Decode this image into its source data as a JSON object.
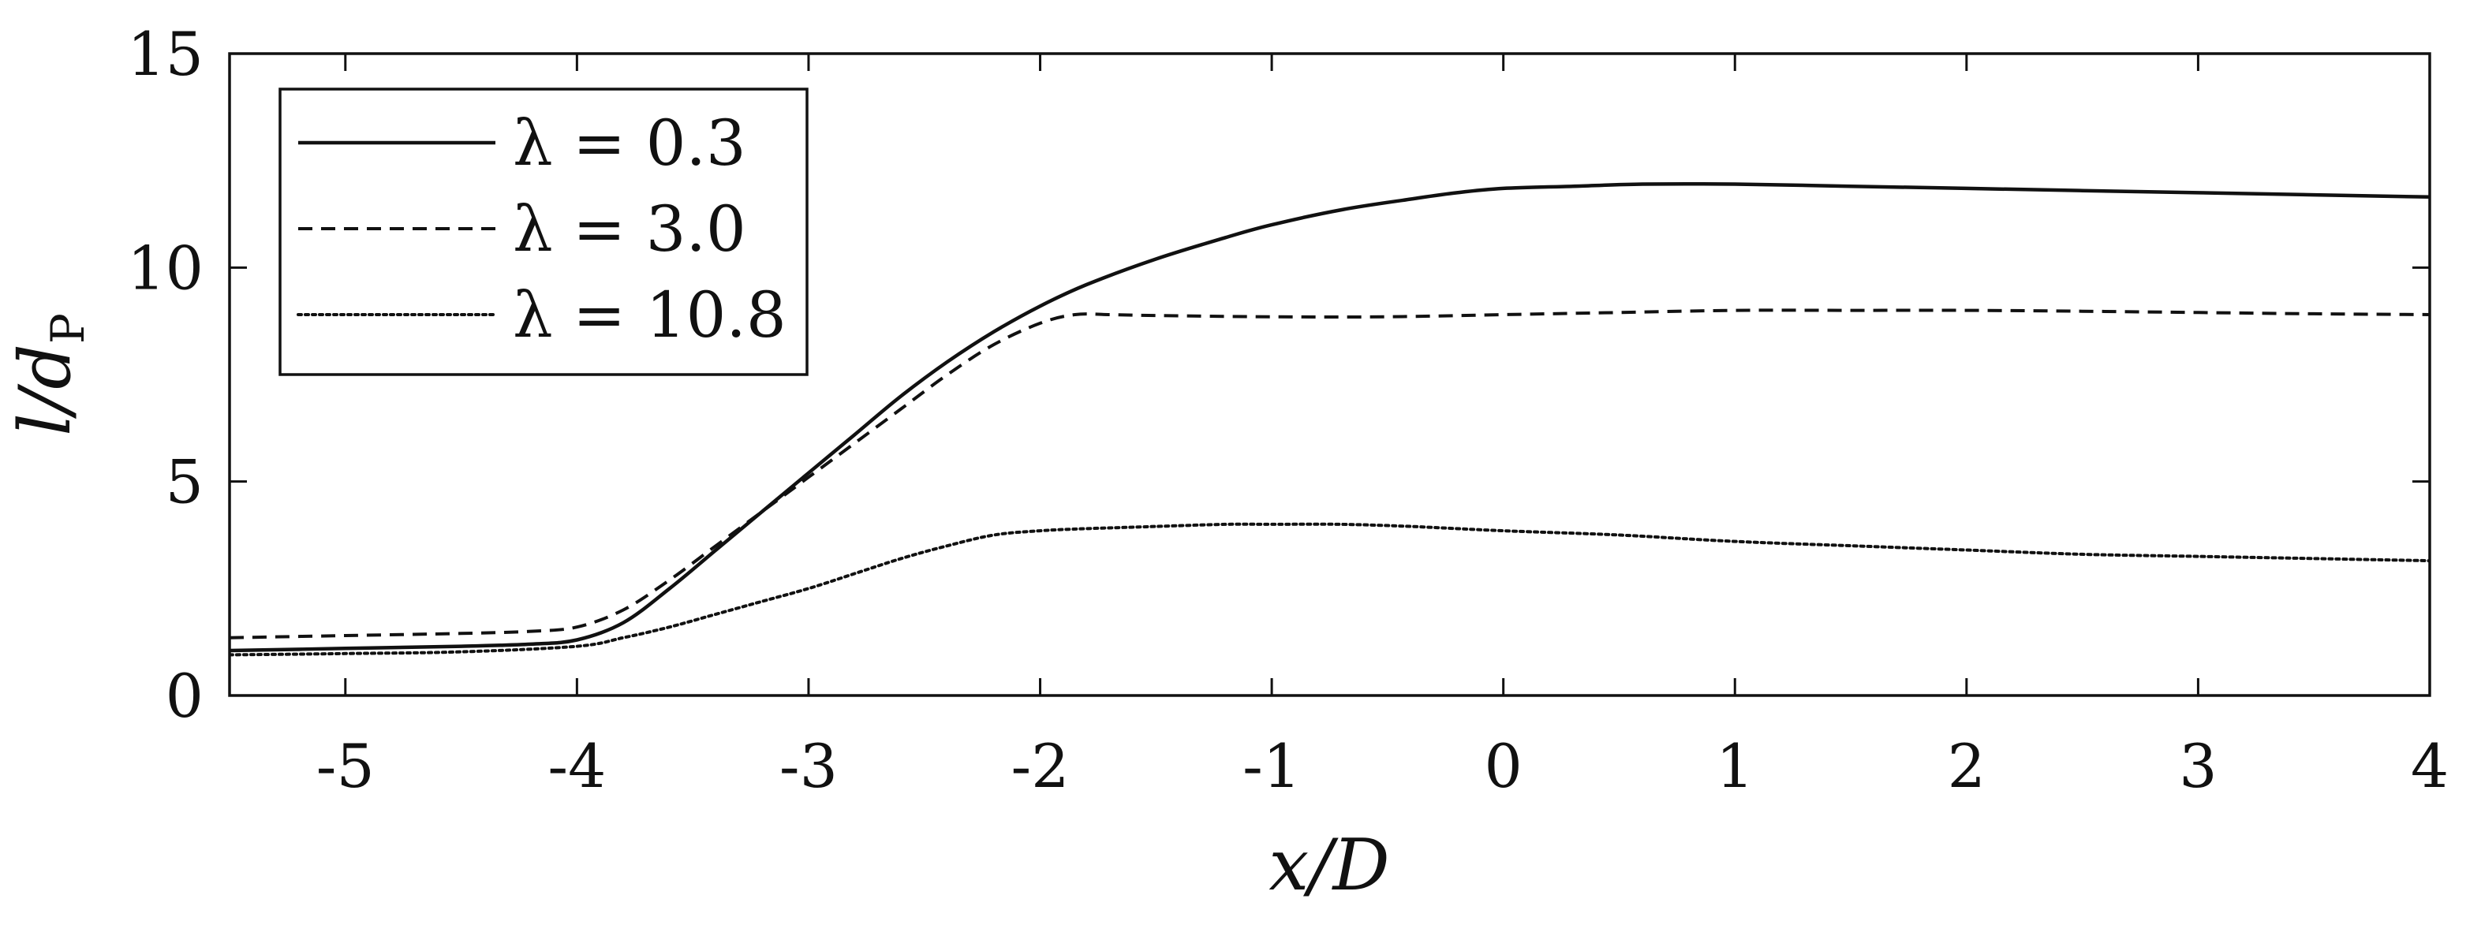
{
  "chart_data": {
    "type": "line",
    "xlabel": "x/D",
    "ylabel": "l/d",
    "ylabel_subscript": "P",
    "xlim": [
      -5.5,
      4
    ],
    "ylim": [
      0,
      15
    ],
    "xticks": [
      -5,
      -4,
      -3,
      -2,
      -1,
      0,
      1,
      2,
      3,
      4
    ],
    "xtick_labels": [
      "-5",
      "-4",
      "-3",
      "-2",
      "-1",
      "0",
      "1",
      "2",
      "3",
      "4"
    ],
    "yticks": [
      0,
      5,
      10,
      15
    ],
    "ytick_labels": [
      "0",
      "5",
      "10",
      "15"
    ],
    "grid": false,
    "legend_position": "top-left",
    "series": [
      {
        "name": "λ = 0.3",
        "style": "solid",
        "x": [
          -5.5,
          -5.0,
          -4.5,
          -4.2,
          -4.0,
          -3.8,
          -3.6,
          -3.4,
          -3.2,
          -3.0,
          -2.8,
          -2.6,
          -2.4,
          -2.2,
          -2.0,
          -1.8,
          -1.5,
          -1.2,
          -1.0,
          -0.7,
          -0.4,
          -0.2,
          0.0,
          0.3,
          0.6,
          1.0,
          1.5,
          2.0,
          2.5,
          3.0,
          3.5,
          4.0
        ],
        "y": [
          1.05,
          1.1,
          1.15,
          1.2,
          1.3,
          1.7,
          2.5,
          3.4,
          4.3,
          5.2,
          6.1,
          7.0,
          7.8,
          8.5,
          9.1,
          9.6,
          10.2,
          10.7,
          11.0,
          11.35,
          11.6,
          11.75,
          11.85,
          11.9,
          11.95,
          11.95,
          11.9,
          11.85,
          11.8,
          11.75,
          11.7,
          11.65
        ]
      },
      {
        "name": "λ = 3.0",
        "style": "dashed",
        "x": [
          -5.5,
          -5.0,
          -4.5,
          -4.2,
          -4.0,
          -3.8,
          -3.6,
          -3.4,
          -3.2,
          -3.0,
          -2.8,
          -2.6,
          -2.4,
          -2.2,
          -2.0,
          -1.85,
          -1.7,
          -1.5,
          -1.0,
          -0.5,
          0.0,
          0.5,
          1.0,
          1.5,
          2.0,
          2.5,
          3.0,
          3.5,
          4.0
        ],
        "y": [
          1.35,
          1.4,
          1.45,
          1.5,
          1.6,
          2.0,
          2.7,
          3.5,
          4.3,
          5.1,
          5.9,
          6.7,
          7.5,
          8.2,
          8.7,
          8.9,
          8.9,
          8.88,
          8.85,
          8.85,
          8.9,
          8.95,
          9.0,
          9.0,
          9.0,
          8.98,
          8.95,
          8.92,
          8.9
        ]
      },
      {
        "name": "λ = 10.8",
        "style": "dotted",
        "x": [
          -5.5,
          -5.0,
          -4.5,
          -4.0,
          -3.8,
          -3.6,
          -3.4,
          -3.2,
          -3.0,
          -2.8,
          -2.6,
          -2.4,
          -2.2,
          -2.0,
          -1.8,
          -1.5,
          -1.2,
          -1.0,
          -0.7,
          -0.4,
          0.0,
          0.5,
          1.0,
          1.5,
          2.0,
          2.5,
          3.0,
          3.5,
          4.0
        ],
        "y": [
          0.95,
          0.98,
          1.02,
          1.15,
          1.35,
          1.6,
          1.9,
          2.2,
          2.5,
          2.85,
          3.2,
          3.5,
          3.75,
          3.85,
          3.9,
          3.95,
          4.0,
          4.0,
          4.0,
          3.95,
          3.85,
          3.75,
          3.6,
          3.5,
          3.4,
          3.3,
          3.25,
          3.2,
          3.15
        ]
      }
    ]
  }
}
